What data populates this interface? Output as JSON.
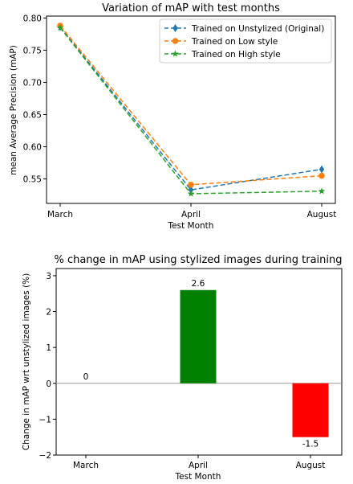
{
  "chart_data": [
    {
      "type": "line",
      "title": "Variation of mAP with test months",
      "xlabel": "Test Month",
      "ylabel": "mean Average Precision (mAP)",
      "categories": [
        "March",
        "April",
        "August"
      ],
      "ylim": [
        0.512,
        0.803
      ],
      "yticks": [
        "0.55",
        "0.60",
        "0.65",
        "0.70",
        "0.75",
        "0.80"
      ],
      "grid": false,
      "legend_position": "top-right",
      "series": [
        {
          "name": "Trained on Unstylized (Original)",
          "values": [
            0.786,
            0.533,
            0.565
          ],
          "color": "#1f77b4",
          "marker": "diamond"
        },
        {
          "name": "Trained on Low style",
          "values": [
            0.788,
            0.541,
            0.555
          ],
          "color": "#ff7f0e",
          "marker": "circle"
        },
        {
          "name": "Trained on High style",
          "values": [
            0.785,
            0.527,
            0.531
          ],
          "color": "#2ca02c",
          "marker": "star"
        }
      ]
    },
    {
      "type": "bar",
      "title": "% change in mAP using stylized images during training",
      "xlabel": "Test Month",
      "ylabel": "Change in mAP wrt unstylized images (%)",
      "categories": [
        "March",
        "April",
        "August"
      ],
      "values": [
        0,
        2.6,
        -1.5
      ],
      "value_labels": [
        "0",
        "2.6",
        "-1.5"
      ],
      "colors": [
        "#008000",
        "#008000",
        "#ff0000"
      ],
      "ylim": [
        -2,
        3.2
      ],
      "yticks": [
        "−2",
        "−1",
        "0",
        "1",
        "2",
        "3"
      ],
      "grid": false
    }
  ]
}
